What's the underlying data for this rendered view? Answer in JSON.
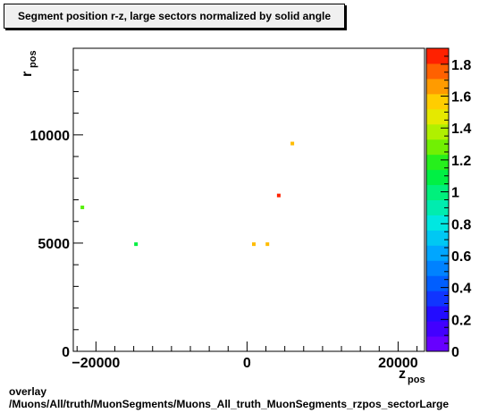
{
  "chart_data": {
    "type": "scatter",
    "title": "Segment position r-z, large sectors normalized by solid angle",
    "xlabel": "z",
    "xlabel_sub": "pos",
    "ylabel": "r",
    "ylabel_sub": "pos",
    "xlim": [
      -23000,
      23500
    ],
    "ylim": [
      0,
      14000
    ],
    "x_ticks": [
      -20000,
      0,
      20000
    ],
    "x_tick_labels": [
      "−20000",
      "0",
      "20000"
    ],
    "y_ticks": [
      0,
      5000,
      10000
    ],
    "y_tick_labels": [
      "0",
      "5000",
      "10000"
    ],
    "color_scale": {
      "min": 0,
      "max": 1.9,
      "ticks": [
        0,
        0.2,
        0.4,
        0.6,
        0.8,
        1,
        1.2,
        1.4,
        1.6,
        1.8
      ],
      "tick_labels": [
        "0",
        "0.2",
        "0.4",
        "0.6",
        "0.8",
        "1",
        "1.2",
        "1.4",
        "1.6",
        "1.8"
      ]
    },
    "points": [
      {
        "x": -21800,
        "y": 6650,
        "value": 1.25
      },
      {
        "x": -14700,
        "y": 4950,
        "value": 1.1
      },
      {
        "x": 900,
        "y": 4950,
        "value": 1.6
      },
      {
        "x": 2700,
        "y": 4950,
        "value": 1.6
      },
      {
        "x": 4200,
        "y": 7200,
        "value": 1.85
      },
      {
        "x": 6000,
        "y": 9600,
        "value": 1.6
      }
    ],
    "grid": false,
    "legend": "colorbar-right"
  },
  "footer": {
    "line1": "overlay",
    "line2": "/Muons/All/truth/MuonSegments/Muons_All_truth_MuonSegments_rzpos_sectorLarge"
  }
}
